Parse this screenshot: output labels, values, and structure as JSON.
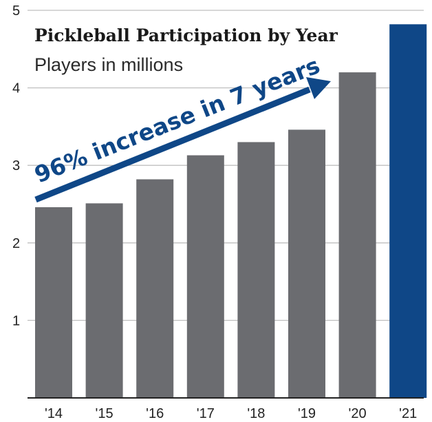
{
  "chart_data": {
    "type": "bar",
    "title": "Pickleball Participation by Year",
    "subtitle": "Players in millions",
    "categories": [
      "'14",
      "'15",
      "'16",
      "'17",
      "'18",
      "'19",
      "'20",
      "'21"
    ],
    "values": [
      2.46,
      2.51,
      2.82,
      3.13,
      3.3,
      3.46,
      4.2,
      4.82
    ],
    "highlight_index": 7,
    "ylim": [
      0,
      5
    ],
    "yticks": [
      1,
      2,
      3,
      4,
      5
    ],
    "grid": true,
    "annotation": "96% increase in 7 years",
    "colors": {
      "bar": "#6b6c70",
      "highlight": "#0f4787",
      "annotation": "#0f4787",
      "grid": "#bfbfbf",
      "axis": "#222222"
    }
  }
}
